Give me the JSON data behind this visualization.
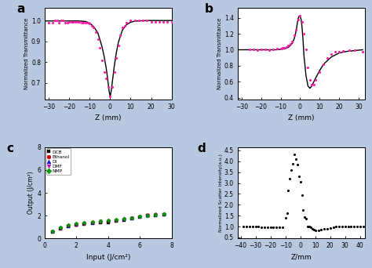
{
  "background_color": "#b8c8e0",
  "panel_a": {
    "xlabel": "Z (mm)",
    "ylabel": "Normalized Transmittance",
    "xlim": [
      -32,
      30
    ],
    "ylim": [
      0.62,
      1.06
    ],
    "yticks": [
      0.7,
      0.8,
      0.9,
      1.0
    ],
    "xticks": [
      -30,
      -20,
      -10,
      0,
      10,
      20,
      30
    ],
    "scatter_x": [
      -30,
      -28,
      -27,
      -26,
      -25,
      -24,
      -23,
      -22,
      -21,
      -20,
      -19,
      -18,
      -17,
      -16,
      -15,
      -14,
      -13,
      -12,
      -11,
      -10,
      -9,
      -8,
      -7,
      -6,
      -5,
      -4,
      -3,
      -2,
      -1,
      0,
      1,
      2,
      3,
      4,
      5,
      6,
      7,
      8,
      10,
      12,
      14,
      16,
      18,
      20,
      22,
      24,
      26,
      28,
      30
    ],
    "scatter_y": [
      0.99,
      0.99,
      1.0,
      1.0,
      0.99,
      1.0,
      1.0,
      0.99,
      0.99,
      0.995,
      0.995,
      0.995,
      0.995,
      0.995,
      0.995,
      0.99,
      0.99,
      0.99,
      0.99,
      0.985,
      0.975,
      0.965,
      0.945,
      0.91,
      0.87,
      0.81,
      0.75,
      0.72,
      0.68,
      0.635,
      0.68,
      0.75,
      0.82,
      0.88,
      0.93,
      0.965,
      0.975,
      0.99,
      1.0,
      1.0,
      1.0,
      1.0,
      1.0,
      0.995,
      0.995,
      0.995,
      0.995,
      0.995,
      0.995
    ],
    "curve_x": [
      -32,
      -30,
      -28,
      -25,
      -22,
      -20,
      -18,
      -16,
      -14,
      -12,
      -10,
      -8,
      -6,
      -4,
      -3,
      -2,
      -1.5,
      -1,
      -0.5,
      0,
      0.5,
      1,
      1.5,
      2,
      3,
      4,
      6,
      8,
      10,
      12,
      14,
      16,
      18,
      20,
      22,
      25,
      28,
      30,
      32
    ],
    "curve_y": [
      0.998,
      0.998,
      0.998,
      0.998,
      0.998,
      0.998,
      0.998,
      0.998,
      0.997,
      0.995,
      0.988,
      0.97,
      0.94,
      0.875,
      0.83,
      0.775,
      0.74,
      0.7,
      0.66,
      0.635,
      0.66,
      0.7,
      0.74,
      0.78,
      0.845,
      0.895,
      0.955,
      0.98,
      0.992,
      0.997,
      0.998,
      0.999,
      1.0,
      1.0,
      1.0,
      1.0,
      1.0,
      1.0,
      1.0
    ]
  },
  "panel_b": {
    "xlabel": "Z (mm)",
    "ylabel": "Normalized Transmittance",
    "xlim": [
      -32,
      33
    ],
    "ylim": [
      0.38,
      1.52
    ],
    "yticks": [
      0.4,
      0.6,
      0.8,
      1.0,
      1.2,
      1.4
    ],
    "xticks": [
      -30,
      -20,
      -10,
      0,
      10,
      20,
      30
    ],
    "scatter_x": [
      -26,
      -24,
      -22,
      -20,
      -18,
      -16,
      -14,
      -12,
      -10,
      -9,
      -8,
      -7,
      -6,
      -5,
      -4,
      -3,
      -2,
      -1,
      0,
      1,
      2,
      3,
      4,
      5,
      6,
      7,
      8,
      10,
      12,
      14,
      16,
      18,
      20,
      22,
      25,
      28,
      32
    ],
    "scatter_y": [
      1.0,
      1.0,
      0.995,
      1.0,
      1.0,
      0.995,
      1.0,
      1.01,
      1.01,
      1.02,
      1.02,
      1.03,
      1.05,
      1.07,
      1.1,
      1.18,
      1.25,
      1.38,
      1.42,
      1.35,
      1.2,
      1.0,
      0.78,
      0.62,
      0.57,
      0.57,
      0.62,
      0.72,
      0.82,
      0.9,
      0.95,
      0.98,
      0.98,
      0.99,
      0.995,
      0.995,
      0.98
    ],
    "curve_x": [
      -32,
      -28,
      -24,
      -20,
      -16,
      -12,
      -8,
      -6,
      -4,
      -3,
      -2,
      -1.5,
      -1,
      -0.5,
      0,
      0.5,
      1,
      1.5,
      2,
      3,
      4,
      5,
      6,
      7,
      8,
      10,
      12,
      16,
      20,
      24,
      28,
      32
    ],
    "curve_y": [
      1.0,
      1.0,
      1.0,
      1.0,
      1.0,
      1.0,
      1.01,
      1.03,
      1.08,
      1.14,
      1.24,
      1.32,
      1.39,
      1.42,
      1.42,
      1.38,
      1.28,
      1.12,
      0.92,
      0.68,
      0.55,
      0.52,
      0.55,
      0.6,
      0.65,
      0.74,
      0.82,
      0.91,
      0.96,
      0.98,
      0.99,
      1.0
    ]
  },
  "panel_c": {
    "xlabel": "Input (J/cm²)",
    "ylabel": "Output (J/cm²)",
    "xlim": [
      0,
      8
    ],
    "ylim": [
      0,
      8
    ],
    "yticks": [
      0,
      2,
      4,
      6,
      8
    ],
    "xticks": [
      0,
      2,
      4,
      6,
      8
    ],
    "series": {
      "DCB": {
        "color": "#111111",
        "marker": "s",
        "x": [
          0.5,
          1.0,
          1.5,
          2.0,
          2.5,
          3.0,
          3.5,
          4.0,
          4.5,
          5.0,
          5.5,
          6.0,
          6.5,
          7.0,
          7.5
        ],
        "y": [
          0.55,
          0.85,
          1.05,
          1.18,
          1.27,
          1.33,
          1.38,
          1.43,
          1.52,
          1.62,
          1.73,
          1.88,
          1.98,
          2.02,
          2.08
        ]
      },
      "Ethanol": {
        "color": "#cc0000",
        "marker": "o",
        "x": [
          0.5,
          1.0,
          1.5,
          2.0,
          2.5,
          3.0,
          3.5,
          4.0,
          4.5,
          5.0,
          5.5,
          6.0,
          6.5,
          7.0,
          7.5
        ],
        "y": [
          0.62,
          0.92,
          1.1,
          1.22,
          1.35,
          1.42,
          1.47,
          1.52,
          1.62,
          1.72,
          1.82,
          1.97,
          2.07,
          2.12,
          2.17
        ]
      },
      "DI": {
        "color": "#0000cc",
        "marker": "^",
        "x": [
          0.5,
          1.0,
          1.5,
          2.0,
          2.5,
          3.0,
          3.5,
          4.0,
          4.5,
          5.0,
          5.5,
          6.0,
          6.5,
          7.0,
          7.5
        ],
        "y": [
          0.62,
          0.97,
          1.12,
          1.27,
          1.37,
          1.42,
          1.52,
          1.57,
          1.67,
          1.72,
          1.82,
          1.92,
          2.02,
          2.07,
          2.12
        ]
      },
      "DMF": {
        "color": "#bb00bb",
        "marker": "v",
        "x": [
          0.5,
          1.0,
          1.5,
          2.0,
          2.5,
          3.0,
          3.5,
          4.0,
          4.5,
          5.0,
          5.5,
          6.0,
          6.5,
          7.0,
          7.5
        ],
        "y": [
          0.6,
          0.94,
          1.12,
          1.24,
          1.35,
          1.42,
          1.5,
          1.54,
          1.62,
          1.7,
          1.8,
          1.9,
          2.0,
          2.05,
          2.1
        ]
      },
      "NMP": {
        "color": "#009900",
        "marker": "D",
        "x": [
          0.5,
          1.0,
          1.5,
          2.0,
          2.5,
          3.0,
          3.5,
          4.0,
          4.5,
          5.0,
          5.5,
          6.0,
          6.5,
          7.0,
          7.5
        ],
        "y": [
          0.65,
          1.0,
          1.17,
          1.3,
          1.4,
          1.47,
          1.52,
          1.6,
          1.67,
          1.74,
          1.84,
          1.94,
          2.04,
          2.09,
          2.14
        ]
      }
    }
  },
  "panel_d": {
    "xlabel": "Z/mm",
    "ylabel": "Normalized Scatter Intensity(a.u.)",
    "xlim": [
      -42,
      43
    ],
    "ylim": [
      0.45,
      4.65
    ],
    "yticks": [
      0.5,
      1.0,
      1.5,
      2.0,
      2.5,
      3.0,
      3.5,
      4.0,
      4.5
    ],
    "xticks": [
      -40,
      -30,
      -20,
      -10,
      0,
      10,
      20,
      30,
      40
    ],
    "scatter_x": [
      -38,
      -36,
      -34,
      -32,
      -30,
      -28,
      -26,
      -24,
      -22,
      -20,
      -18,
      -16,
      -14,
      -12,
      -10,
      -9,
      -8,
      -7,
      -6,
      -5,
      -4,
      -3,
      -2,
      -1,
      0,
      1,
      2,
      3,
      4,
      5,
      6,
      7,
      8,
      9,
      10,
      12,
      14,
      16,
      18,
      20,
      22,
      24,
      26,
      28,
      30,
      32,
      34,
      36,
      38,
      40,
      42
    ],
    "scatter_y": [
      1.0,
      1.0,
      1.0,
      0.99,
      0.99,
      0.99,
      0.98,
      0.98,
      0.97,
      0.96,
      0.95,
      0.95,
      0.96,
      0.97,
      1.4,
      1.6,
      2.65,
      3.2,
      3.6,
      3.9,
      4.3,
      4.1,
      3.85,
      3.3,
      3.05,
      2.45,
      1.75,
      1.45,
      1.35,
      1.0,
      1.0,
      0.95,
      0.9,
      0.85,
      0.82,
      0.82,
      0.85,
      0.88,
      0.9,
      0.93,
      0.96,
      0.99,
      1.0,
      1.0,
      1.0,
      0.99,
      1.0,
      1.0,
      1.0,
      1.0,
      1.0
    ]
  }
}
